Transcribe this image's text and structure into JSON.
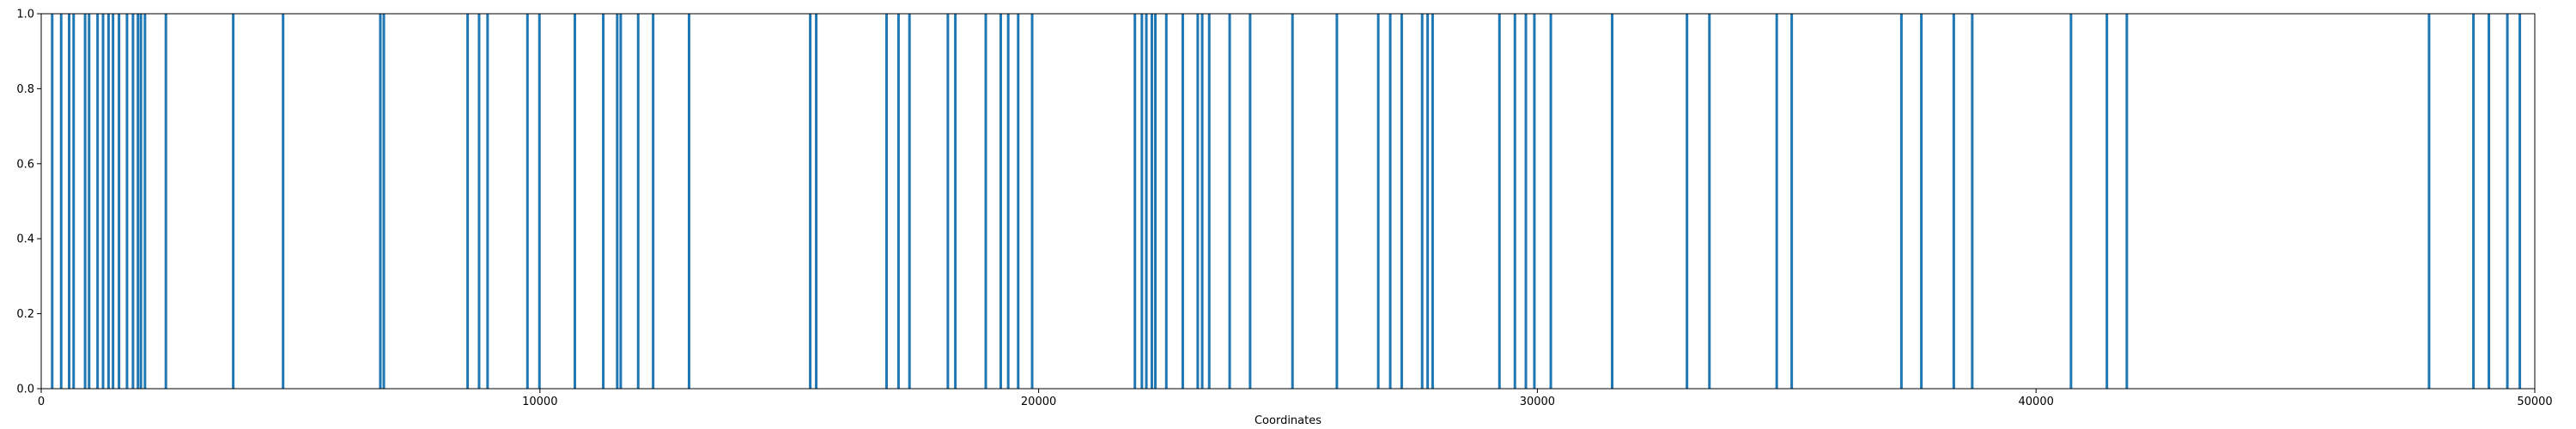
{
  "chart_data": {
    "type": "bar",
    "title": "",
    "xlabel": "Coordinates",
    "ylabel": "",
    "xlim": [
      0,
      50000
    ],
    "ylim": [
      0.0,
      1.0
    ],
    "grid": false,
    "bar_color": "#1f77b4",
    "x_ticks": [
      {
        "value": 0,
        "label": "0"
      },
      {
        "value": 10000,
        "label": "10000"
      },
      {
        "value": 20000,
        "label": "20000"
      },
      {
        "value": 30000,
        "label": "30000"
      },
      {
        "value": 40000,
        "label": "40000"
      },
      {
        "value": 50000,
        "label": "50000"
      }
    ],
    "y_ticks": [
      {
        "value": 0.0,
        "label": "0.0"
      },
      {
        "value": 0.2,
        "label": "0.2"
      },
      {
        "value": 0.4,
        "label": "0.4"
      },
      {
        "value": 0.6,
        "label": "0.6"
      },
      {
        "value": 0.8,
        "label": "0.8"
      },
      {
        "value": 1.0,
        "label": "1.0"
      }
    ],
    "series": [
      {
        "x": [
          220,
          400,
          560,
          650,
          880,
          960,
          1130,
          1240,
          1350,
          1440,
          1560,
          1720,
          1840,
          1940,
          2000,
          2080,
          2500,
          3850,
          4850,
          6800,
          6870,
          8550,
          8780,
          8950,
          9750,
          9990,
          10700,
          11270,
          11550,
          11620,
          11970,
          12270,
          12990,
          15420,
          15540,
          16950,
          17190,
          17410,
          18180,
          18330,
          18940,
          19240,
          19390,
          19590,
          19870,
          21930,
          22070,
          22160,
          22270,
          22340,
          22560,
          22890,
          23190,
          23280,
          23420,
          23830,
          24240,
          25090,
          25980,
          26810,
          27050,
          27280,
          27690,
          27800,
          27900,
          29240,
          29550,
          29770,
          29940,
          30270,
          31500,
          33000,
          33450,
          34800,
          35100,
          37300,
          37700,
          38350,
          38720,
          40700,
          41420,
          41820,
          47880,
          48770,
          49080,
          49450,
          49700
        ],
        "values": [
          1,
          1,
          1,
          1,
          1,
          1,
          1,
          1,
          1,
          1,
          1,
          1,
          1,
          1,
          1,
          1,
          1,
          1,
          1,
          1,
          1,
          1,
          1,
          1,
          1,
          1,
          1,
          1,
          1,
          1,
          1,
          1,
          1,
          1,
          1,
          1,
          1,
          1,
          1,
          1,
          1,
          1,
          1,
          1,
          1,
          1,
          1,
          1,
          1,
          1,
          1,
          1,
          1,
          1,
          1,
          1,
          1,
          1,
          1,
          1,
          1,
          1,
          1,
          1,
          1,
          1,
          1,
          1,
          1,
          1,
          1,
          1,
          1,
          1,
          1,
          1,
          1,
          1,
          1,
          1,
          1,
          1,
          1,
          1,
          1,
          1,
          1
        ]
      }
    ]
  }
}
